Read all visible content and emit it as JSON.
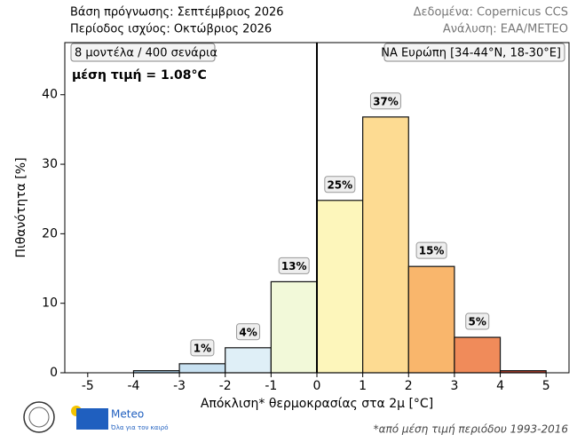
{
  "chart_data": {
    "type": "histogram",
    "title": "Βάση πρόγνωσης: Σεπτέμβριος 2026",
    "subtitle": "Περίοδος ισχύος: Οκτώβριος 2026",
    "source": "Δεδομένα: Copernicus CCS",
    "credit": "Ανάλυση: ΕΑΑ/METEO",
    "annotations": [
      "8 μοντέλα / 400 σενάρια",
      "μέση τιμή = 1.08°C",
      "ΝΑ Ευρώπη [34-44°N, 18-30°E]"
    ],
    "xlabel": "Απόκλιση* θερμοκρασίας στα 2μ [°C]",
    "ylabel": "Πιθανότητα [%]",
    "footnote": "*από μέση τιμή περιόδου 1993-2016",
    "logo_text": "Meteo",
    "logo_tagline": "Όλα για τον καιρό",
    "bins": [
      -5,
      -4,
      -3,
      -2,
      -1,
      0,
      1,
      2,
      3,
      4,
      5
    ],
    "values": [
      0,
      0.3,
      1.3,
      3.6,
      13.1,
      24.8,
      36.8,
      15.3,
      5.1,
      0.3
    ],
    "value_labels": [
      null,
      null,
      "1%",
      "4%",
      "13%",
      "25%",
      "37%",
      "15%",
      "5%",
      null
    ],
    "colors": [
      "#8fb9da",
      "#a9cde6",
      "#c8e1f1",
      "#dfeff7",
      "#f2f9d9",
      "#fdf6bb",
      "#fddb92",
      "#f9b66c",
      "#f08b5a",
      "#b9432e"
    ],
    "xlim": [
      -5.5,
      5.5
    ],
    "xticks": [
      -5,
      -4,
      -3,
      -2,
      -1,
      0,
      1,
      2,
      3,
      4,
      5
    ],
    "ylim": [
      0,
      47.5
    ],
    "yticks": [
      0,
      10,
      20,
      30,
      40
    ],
    "zero_line": true,
    "grid": false
  }
}
